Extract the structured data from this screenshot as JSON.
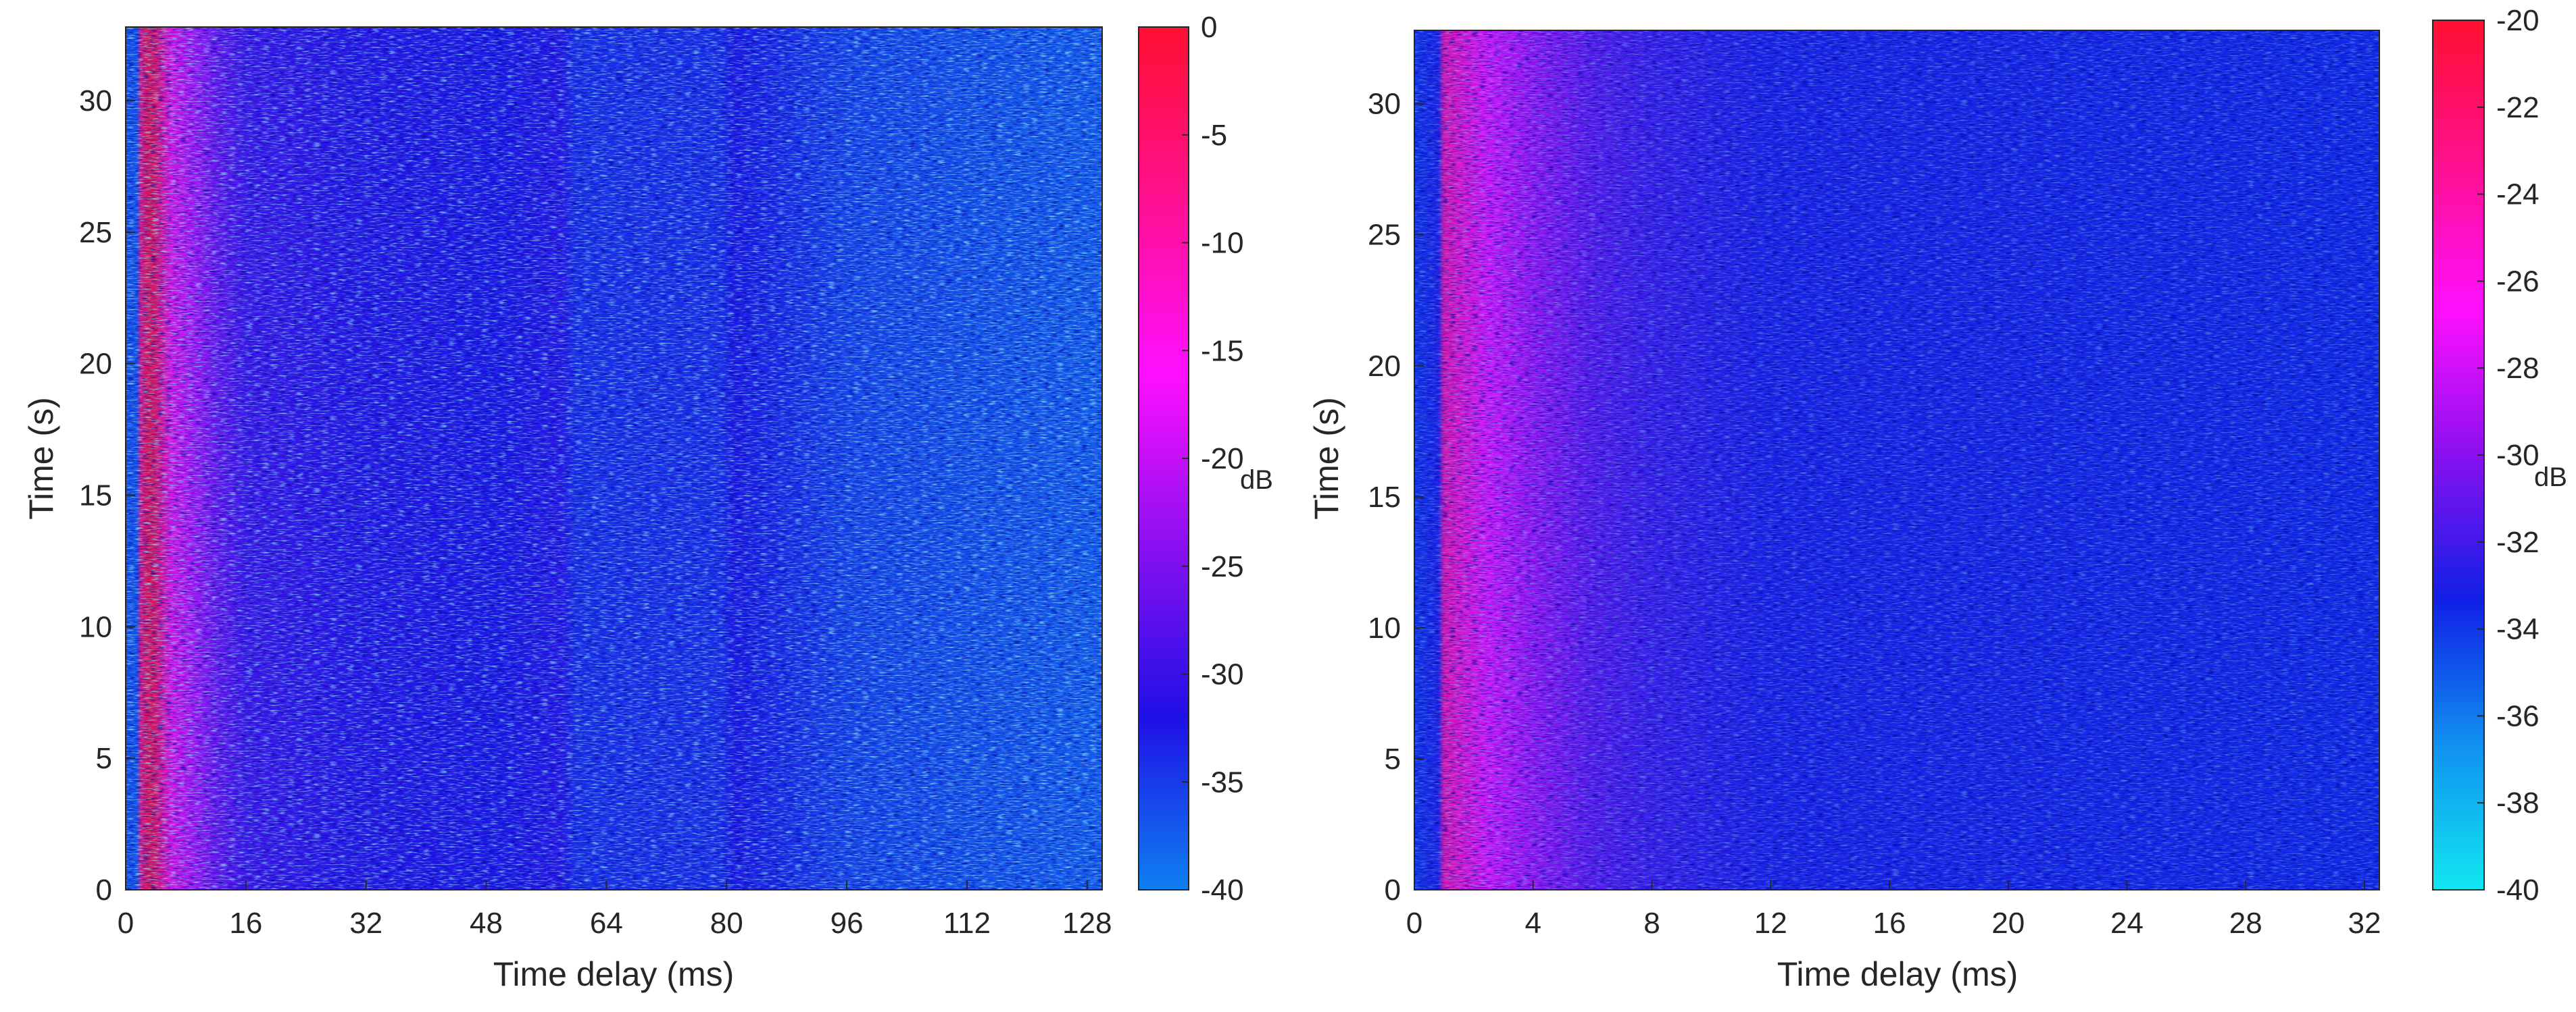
{
  "chart_data": [
    {
      "type": "heatmap",
      "title": "",
      "xlabel": "Time delay (ms)",
      "ylabel": "Time (s)",
      "xlim": [
        0,
        130
      ],
      "ylim": [
        0,
        32.8
      ],
      "xticks": [
        0,
        16,
        32,
        48,
        64,
        80,
        96,
        112,
        128
      ],
      "yticks": [
        0,
        5,
        10,
        15,
        20,
        25,
        30
      ],
      "colorbar": {
        "label": "dB",
        "min": -40,
        "max": 0,
        "ticks": [
          0,
          -5,
          -10,
          -15,
          -20,
          -25,
          -30,
          -35,
          -40
        ],
        "colormap": [
          "#0e80f0",
          "#1f10e6",
          "#8a10f0",
          "#ff10ff",
          "#ff1090",
          "#ff1030"
        ]
      },
      "delay_profile_db": [
        {
          "x": 0,
          "db": -37
        },
        {
          "x": 1.5,
          "db": -37
        },
        {
          "x": 2,
          "db": -6
        },
        {
          "x": 3,
          "db": -1
        },
        {
          "x": 4,
          "db": -3
        },
        {
          "x": 6,
          "db": -14
        },
        {
          "x": 9,
          "db": -20
        },
        {
          "x": 12,
          "db": -25
        },
        {
          "x": 16,
          "db": -29
        },
        {
          "x": 30,
          "db": -31
        },
        {
          "x": 50,
          "db": -32
        },
        {
          "x": 58,
          "db": -31
        },
        {
          "x": 60,
          "db": -34
        },
        {
          "x": 79,
          "db": -34
        },
        {
          "x": 81,
          "db": -32
        },
        {
          "x": 96,
          "db": -36
        },
        {
          "x": 112,
          "db": -37
        },
        {
          "x": 130,
          "db": -38
        }
      ]
    },
    {
      "type": "heatmap",
      "title": "",
      "xlabel": "Time delay (ms)",
      "ylabel": "Time (s)",
      "xlim": [
        0,
        32.5
      ],
      "ylim": [
        0,
        32.8
      ],
      "xticks": [
        0,
        4,
        8,
        12,
        16,
        20,
        24,
        28,
        32
      ],
      "yticks": [
        0,
        5,
        10,
        15,
        20,
        25,
        30
      ],
      "colorbar": {
        "label": "dB",
        "min": -40,
        "max": -20,
        "ticks": [
          -20,
          -22,
          -24,
          -26,
          -28,
          -30,
          -32,
          -34,
          -36,
          -38,
          -40
        ],
        "colormap": [
          "#10e8f0",
          "#1090f0",
          "#1020e6",
          "#8a10f0",
          "#ff10ff",
          "#ff1090",
          "#ff1030"
        ]
      },
      "delay_profile_db": [
        {
          "x": 0,
          "db": -34
        },
        {
          "x": 0.8,
          "db": -33
        },
        {
          "x": 1,
          "db": -24
        },
        {
          "x": 1.5,
          "db": -25
        },
        {
          "x": 2.5,
          "db": -27
        },
        {
          "x": 4,
          "db": -29
        },
        {
          "x": 6,
          "db": -31
        },
        {
          "x": 8,
          "db": -32
        },
        {
          "x": 12,
          "db": -33
        },
        {
          "x": 32.5,
          "db": -33.5
        }
      ]
    }
  ]
}
